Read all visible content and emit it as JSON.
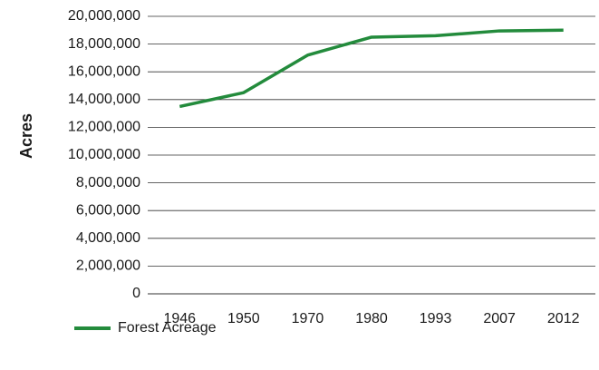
{
  "chart_data": {
    "type": "line",
    "y_label": "Acres",
    "categories": [
      "1946",
      "1950",
      "1970",
      "1980",
      "1993",
      "2007",
      "2012"
    ],
    "series": [
      {
        "name": "Forest Acreage",
        "color": "#238b3c",
        "values": [
          13500000,
          14500000,
          17200000,
          18500000,
          18600000,
          18950000,
          19000000
        ]
      }
    ],
    "ylim": [
      0,
      20000000
    ],
    "yticks": [
      0,
      {
        "value": 2000000,
        "label": "2,000,000"
      },
      {
        "value": 4000000,
        "label": "4,000,000"
      },
      {
        "value": 6000000,
        "label": "6,000,000"
      },
      {
        "value": 8000000,
        "label": "8,000,000"
      },
      {
        "value": 10000000,
        "label": "10,000,000"
      },
      {
        "value": 12000000,
        "label": "12,000,000"
      },
      {
        "value": 14000000,
        "label": "14,000,000"
      },
      {
        "value": 16000000,
        "label": "16,000,000"
      },
      {
        "value": 18000000,
        "label": "18,000,000"
      },
      {
        "value": 20000000,
        "label": "20,000,000"
      }
    ],
    "grid": true,
    "legend": "bottom"
  }
}
